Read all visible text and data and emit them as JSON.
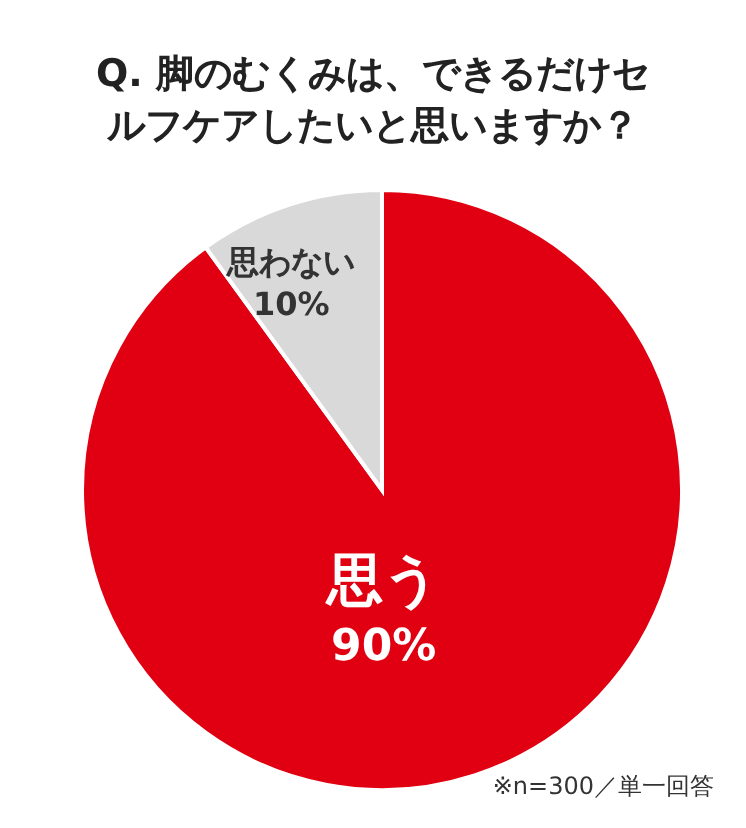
{
  "chart_data": {
    "type": "pie",
    "title": "Q. 脚のむくみは、できるだけセルフケアしたいと思いますか？",
    "categories": [
      "思う",
      "思わない"
    ],
    "values": [
      90,
      10
    ],
    "colors": [
      "#e00012",
      "#d9d9d9"
    ],
    "value_labels": [
      "90%",
      "10%"
    ],
    "annotations": [
      "※n=300／単一回答"
    ]
  }
}
